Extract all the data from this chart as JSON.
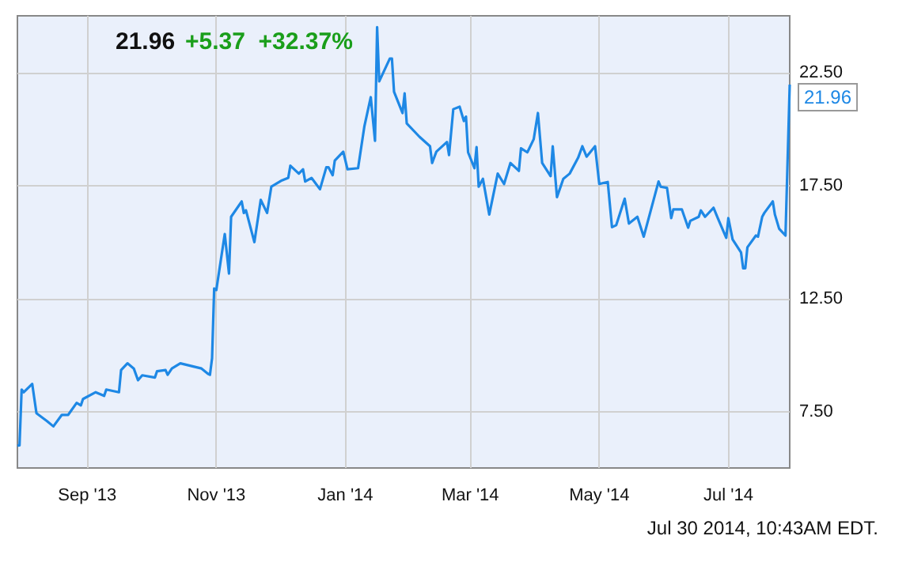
{
  "chart_data": {
    "type": "line",
    "title": "21.96",
    "subtitle": "+5.37  +32.37%",
    "annotations": [
      {
        "text": "21.96",
        "x": "2014-07-30",
        "y": 21.96
      },
      "Jul 30 2014, 10:43AM EDT."
    ],
    "xlim": [
      "2013-07-30",
      "2014-07-30"
    ],
    "xticks": [
      {
        "value": "2013-09-01",
        "label": "Sep '13"
      },
      {
        "value": "2013-11-01",
        "label": "Nov '13"
      },
      {
        "value": "2014-01-01",
        "label": "Jan '14"
      },
      {
        "value": "2014-03-01",
        "label": "Mar '14"
      },
      {
        "value": "2014-05-01",
        "label": "May '14"
      },
      {
        "value": "2014-07-01",
        "label": "Jul '14"
      }
    ],
    "ylim": [
      5,
      25
    ],
    "yticks": [
      {
        "value": 7.5,
        "label": "7.50"
      },
      {
        "value": 12.5,
        "label": "12.50"
      },
      {
        "value": 17.5,
        "label": "17.50"
      },
      {
        "value": 22.5,
        "label": "22.50"
      }
    ],
    "grid": true,
    "marker": "none",
    "line_style": "solid",
    "x": [
      "2013-07-30",
      "2013-07-31",
      "2013-08-01",
      "2013-08-02",
      "2013-08-06",
      "2013-08-08",
      "2013-08-13",
      "2013-08-16",
      "2013-08-20",
      "2013-08-23",
      "2013-08-27",
      "2013-08-29",
      "2013-08-30",
      "2013-09-05",
      "2013-09-09",
      "2013-09-10",
      "2013-09-16",
      "2013-09-17",
      "2013-09-20",
      "2013-09-23",
      "2013-09-25",
      "2013-09-27",
      "2013-10-03",
      "2013-10-04",
      "2013-10-08",
      "2013-10-09",
      "2013-10-11",
      "2013-10-15",
      "2013-10-25",
      "2013-10-28",
      "2013-10-29",
      "2013-10-30",
      "2013-10-31",
      "2013-11-01",
      "2013-11-05",
      "2013-11-07",
      "2013-11-08",
      "2013-11-13",
      "2013-11-14",
      "2013-11-15",
      "2013-11-19",
      "2013-11-22",
      "2013-11-25",
      "2013-11-27",
      "2013-12-02",
      "2013-12-05",
      "2013-12-06",
      "2013-12-10",
      "2013-12-12",
      "2013-12-13",
      "2013-12-16",
      "2013-12-20",
      "2013-12-23",
      "2013-12-24",
      "2013-12-26",
      "2013-12-27",
      "2013-12-31",
      "2014-01-02",
      "2014-01-07",
      "2014-01-10",
      "2014-01-13",
      "2014-01-15",
      "2014-01-16",
      "2014-01-17",
      "2014-01-22",
      "2014-01-23",
      "2014-01-24",
      "2014-01-28",
      "2014-01-29",
      "2014-01-30",
      "2014-02-05",
      "2014-02-10",
      "2014-02-11",
      "2014-02-13",
      "2014-02-18",
      "2014-02-19",
      "2014-02-21",
      "2014-02-24",
      "2014-02-26",
      "2014-02-27",
      "2014-02-28",
      "2014-03-03",
      "2014-03-04",
      "2014-03-05",
      "2014-03-07",
      "2014-03-10",
      "2014-03-14",
      "2014-03-17",
      "2014-03-20",
      "2014-03-24",
      "2014-03-25",
      "2014-03-28",
      "2014-03-31",
      "2014-04-02",
      "2014-04-04",
      "2014-04-08",
      "2014-04-09",
      "2014-04-11",
      "2014-04-14",
      "2014-04-17",
      "2014-04-21",
      "2014-04-23",
      "2014-04-25",
      "2014-04-29",
      "2014-05-01",
      "2014-05-05",
      "2014-05-07",
      "2014-05-09",
      "2014-05-13",
      "2014-05-15",
      "2014-05-19",
      "2014-05-22",
      "2014-05-29",
      "2014-05-30",
      "2014-06-02",
      "2014-06-04",
      "2014-06-05",
      "2014-06-09",
      "2014-06-12",
      "2014-06-13",
      "2014-06-17",
      "2014-06-18",
      "2014-06-20",
      "2014-06-24",
      "2014-06-26",
      "2014-06-30",
      "2014-07-01",
      "2014-07-03",
      "2014-07-07",
      "2014-07-08",
      "2014-07-09",
      "2014-07-10",
      "2014-07-14",
      "2014-07-15",
      "2014-07-17",
      "2014-07-18",
      "2014-07-22",
      "2014-07-23",
      "2014-07-25",
      "2014-07-28",
      "2014-07-30"
    ],
    "series": [
      {
        "color": "#1e88e5",
        "values": [
          5.99,
          6.0,
          8.47,
          8.35,
          8.72,
          7.42,
          7.07,
          6.84,
          7.35,
          7.35,
          7.88,
          7.77,
          8.05,
          8.35,
          8.19,
          8.47,
          8.35,
          9.33,
          9.63,
          9.4,
          8.88,
          9.1,
          9.0,
          9.28,
          9.33,
          9.12,
          9.4,
          9.63,
          9.4,
          9.17,
          9.12,
          9.86,
          12.94,
          12.87,
          15.35,
          13.6,
          16.11,
          16.79,
          16.28,
          16.4,
          14.99,
          16.86,
          16.28,
          17.44,
          17.72,
          17.83,
          18.37,
          18.02,
          18.21,
          17.67,
          17.83,
          17.33,
          18.3,
          18.3,
          17.95,
          18.6,
          18.99,
          18.21,
          18.26,
          20.12,
          21.4,
          19.47,
          24.5,
          22.1,
          23.11,
          23.11,
          21.64,
          20.7,
          21.57,
          20.24,
          19.65,
          19.23,
          18.49,
          18.99,
          19.42,
          18.84,
          20.87,
          20.98,
          20.35,
          20.54,
          18.96,
          18.26,
          19.19,
          17.44,
          17.79,
          16.21,
          18.02,
          17.56,
          18.49,
          18.14,
          19.14,
          18.96,
          19.54,
          20.7,
          18.49,
          17.91,
          19.23,
          16.98,
          17.79,
          18.02,
          18.72,
          19.23,
          18.77,
          19.23,
          17.56,
          17.65,
          15.65,
          15.74,
          16.91,
          15.81,
          16.11,
          15.23,
          17.67,
          17.44,
          17.39,
          16.05,
          16.44,
          16.44,
          15.63,
          15.93,
          16.11,
          16.39,
          16.11,
          16.51,
          16.05,
          15.18,
          16.05,
          15.11,
          14.53,
          13.83,
          13.83,
          14.76,
          15.28,
          15.23,
          16.11,
          16.28,
          16.79,
          16.21,
          15.58,
          15.28,
          21.96
        ]
      }
    ]
  }
}
